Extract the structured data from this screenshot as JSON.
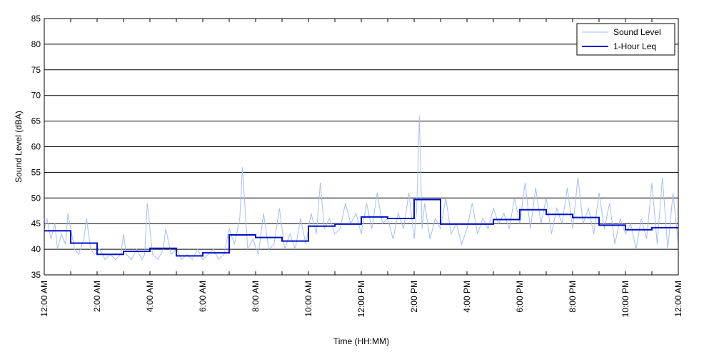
{
  "chart_data": {
    "type": "line",
    "title": "",
    "xlabel": "Time (HH:MM)",
    "ylabel": "Sound Level (dBA)",
    "xlim": [
      0,
      24
    ],
    "ylim": [
      35,
      85
    ],
    "y_ticks": [
      35,
      40,
      45,
      50,
      55,
      60,
      65,
      70,
      75,
      80,
      85
    ],
    "x_ticks": [
      0,
      2,
      4,
      6,
      8,
      10,
      12,
      14,
      16,
      18,
      20,
      22,
      24
    ],
    "x_tick_labels": [
      "12:00 AM",
      "2:00 AM",
      "4:00 AM",
      "6:00 AM",
      "8:00 AM",
      "10:00 AM",
      "12:00 PM",
      "2:00 PM",
      "4:00 PM",
      "6:00 PM",
      "8:00 PM",
      "10:00 PM",
      "12:00 AM"
    ],
    "grid": "horizontal",
    "legend_position": "top-right",
    "series": [
      {
        "name": "Sound Level",
        "color": "#a6bff2",
        "style": "thin line",
        "x": [
          0,
          0.1,
          0.25,
          0.4,
          0.5,
          0.65,
          0.8,
          0.9,
          1.0,
          1.15,
          1.3,
          1.5,
          1.6,
          1.75,
          1.9,
          2.1,
          2.3,
          2.5,
          2.7,
          2.9,
          3.0,
          3.1,
          3.3,
          3.5,
          3.7,
          3.8,
          3.9,
          4.1,
          4.3,
          4.5,
          4.6,
          4.8,
          5.0,
          5.2,
          5.4,
          5.6,
          5.8,
          6.0,
          6.2,
          6.4,
          6.6,
          6.8,
          7.0,
          7.2,
          7.4,
          7.5,
          7.7,
          7.9,
          8.1,
          8.3,
          8.5,
          8.7,
          8.9,
          9.1,
          9.3,
          9.5,
          9.7,
          9.9,
          10.1,
          10.3,
          10.45,
          10.6,
          10.8,
          11.0,
          11.2,
          11.4,
          11.6,
          11.8,
          12.0,
          12.2,
          12.4,
          12.6,
          12.8,
          13.0,
          13.2,
          13.4,
          13.6,
          13.8,
          14.0,
          14.1,
          14.2,
          14.3,
          14.4,
          14.6,
          14.8,
          15.0,
          15.2,
          15.4,
          15.6,
          15.8,
          16.0,
          16.2,
          16.4,
          16.6,
          16.8,
          17.0,
          17.2,
          17.4,
          17.6,
          17.8,
          18.0,
          18.2,
          18.4,
          18.6,
          18.8,
          19.0,
          19.2,
          19.4,
          19.6,
          19.8,
          20.0,
          20.2,
          20.4,
          20.6,
          20.8,
          21.0,
          21.2,
          21.4,
          21.6,
          21.8,
          22.0,
          22.2,
          22.4,
          22.6,
          22.8,
          23.0,
          23.2,
          23.4,
          23.6,
          23.8,
          24.0
        ],
        "values": [
          44,
          46,
          42,
          45,
          40,
          43,
          41,
          47,
          44,
          40,
          39,
          42,
          46,
          40,
          39,
          40,
          38,
          39,
          38,
          39,
          43,
          39,
          38,
          40,
          38,
          39,
          49,
          39,
          38,
          40,
          44,
          39,
          40,
          38,
          39,
          38,
          40,
          38,
          39,
          40,
          38,
          39,
          44,
          41,
          46,
          56,
          40,
          42,
          39,
          47,
          40,
          41,
          48,
          40,
          43,
          40,
          46,
          41,
          47,
          43,
          53,
          44,
          46,
          43,
          44,
          49,
          45,
          47,
          43,
          49,
          44,
          51,
          45,
          46,
          42,
          47,
          44,
          51,
          42,
          48,
          66,
          44,
          49,
          42,
          46,
          44,
          50,
          43,
          45,
          41,
          44,
          49,
          43,
          46,
          44,
          48,
          45,
          47,
          44,
          50,
          45,
          53,
          44,
          52,
          45,
          50,
          43,
          48,
          45,
          52,
          44,
          54,
          45,
          48,
          43,
          51,
          44,
          49,
          41,
          46,
          43,
          45,
          40,
          46,
          42,
          53,
          41,
          54,
          40,
          51,
          41
        ]
      },
      {
        "name": "1-Hour Leq",
        "color": "#0010c8",
        "style": "step",
        "hours": [
          0,
          1,
          2,
          3,
          4,
          5,
          6,
          7,
          8,
          9,
          10,
          11,
          12,
          13,
          14,
          15,
          16,
          17,
          18,
          19,
          20,
          21,
          22,
          23
        ],
        "values": [
          43.6,
          41.2,
          39.0,
          39.6,
          40.2,
          38.7,
          39.3,
          42.8,
          42.3,
          41.6,
          44.5,
          44.9,
          46.3,
          46.0,
          49.7,
          44.9,
          44.9,
          45.8,
          47.7,
          46.8,
          46.2,
          44.7,
          43.8,
          44.2
        ]
      }
    ]
  }
}
